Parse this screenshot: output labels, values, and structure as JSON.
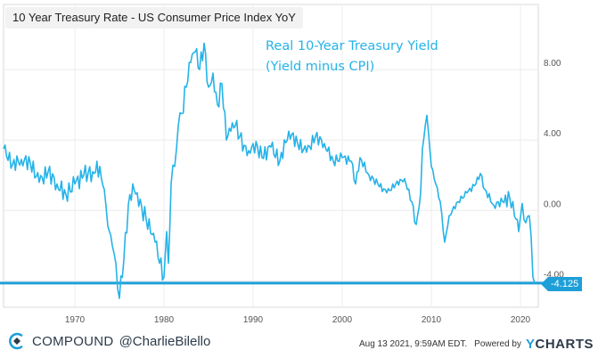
{
  "chart_data": {
    "type": "line",
    "title": "10 Year Treasury Rate - US Consumer Price Index YoY",
    "annotation_lines": [
      "Real 10-Year Treasury Yield",
      "(Yield minus CPI)"
    ],
    "x_ticks": [
      "1970",
      "1980",
      "1990",
      "2000",
      "2010",
      "2020"
    ],
    "y_ticks": [
      "8.00",
      "4.00",
      "0.00",
      "-4.00"
    ],
    "xlim": [
      1962,
      2022
    ],
    "ylim": [
      -5.5,
      11.7
    ],
    "grid": true,
    "reference_line": -4.125,
    "end_label": "-4.125",
    "series": [
      {
        "color": "#25b3e8",
        "points": [
          [
            1962.0,
            3.5
          ],
          [
            1963.0,
            2.6
          ],
          [
            1964.0,
            2.9
          ],
          [
            1965.0,
            2.7
          ],
          [
            1966.0,
            1.6
          ],
          [
            1967.0,
            2.2
          ],
          [
            1968.0,
            1.5
          ],
          [
            1969.0,
            0.9
          ],
          [
            1970.0,
            1.5
          ],
          [
            1971.0,
            2.0
          ],
          [
            1972.0,
            2.2
          ],
          [
            1972.8,
            2.5
          ],
          [
            1973.3,
            1.2
          ],
          [
            1973.7,
            -0.9
          ],
          [
            1974.2,
            -2.0
          ],
          [
            1974.6,
            -3.0
          ],
          [
            1975.0,
            -5.0
          ],
          [
            1975.5,
            -2.8
          ],
          [
            1976.0,
            0.3
          ],
          [
            1976.5,
            1.5
          ],
          [
            1977.0,
            1.0
          ],
          [
            1977.5,
            0.2
          ],
          [
            1978.0,
            -0.5
          ],
          [
            1978.5,
            -1.3
          ],
          [
            1979.0,
            -1.8
          ],
          [
            1979.5,
            -3.0
          ],
          [
            1980.0,
            -3.8
          ],
          [
            1980.3,
            -1.2
          ],
          [
            1980.5,
            -3.0
          ],
          [
            1980.8,
            1.5
          ],
          [
            1981.2,
            2.5
          ],
          [
            1981.6,
            4.8
          ],
          [
            1982.0,
            5.5
          ],
          [
            1982.5,
            7.0
          ],
          [
            1983.0,
            8.4
          ],
          [
            1983.5,
            9.0
          ],
          [
            1984.0,
            8.0
          ],
          [
            1984.5,
            9.5
          ],
          [
            1985.0,
            7.0
          ],
          [
            1985.5,
            7.8
          ],
          [
            1986.0,
            6.0
          ],
          [
            1986.5,
            7.2
          ],
          [
            1987.0,
            4.0
          ],
          [
            1987.5,
            4.5
          ],
          [
            1988.0,
            4.8
          ],
          [
            1988.5,
            4.2
          ],
          [
            1989.0,
            3.7
          ],
          [
            1989.5,
            3.4
          ],
          [
            1990.0,
            3.8
          ],
          [
            1990.5,
            3.6
          ],
          [
            1991.0,
            3.0
          ],
          [
            1992.0,
            3.6
          ],
          [
            1993.0,
            2.8
          ],
          [
            1994.0,
            4.5
          ],
          [
            1995.0,
            3.8
          ],
          [
            1996.0,
            3.3
          ],
          [
            1997.0,
            4.2
          ],
          [
            1998.0,
            3.8
          ],
          [
            1999.0,
            2.8
          ],
          [
            2000.0,
            3.0
          ],
          [
            2001.0,
            2.8
          ],
          [
            2001.5,
            1.5
          ],
          [
            2002.0,
            3.0
          ],
          [
            2003.0,
            2.0
          ],
          [
            2004.0,
            1.5
          ],
          [
            2005.0,
            1.0
          ],
          [
            2006.0,
            1.5
          ],
          [
            2007.0,
            1.8
          ],
          [
            2007.8,
            0.5
          ],
          [
            2008.3,
            -0.8
          ],
          [
            2008.8,
            1.0
          ],
          [
            2009.0,
            3.5
          ],
          [
            2009.5,
            5.4
          ],
          [
            2010.0,
            2.5
          ],
          [
            2010.5,
            1.5
          ],
          [
            2011.0,
            0.5
          ],
          [
            2011.5,
            -1.8
          ],
          [
            2012.0,
            -0.3
          ],
          [
            2013.0,
            0.5
          ],
          [
            2014.0,
            1.0
          ],
          [
            2015.0,
            1.5
          ],
          [
            2015.5,
            2.1
          ],
          [
            2016.0,
            1.2
          ],
          [
            2017.0,
            0.3
          ],
          [
            2018.0,
            0.5
          ],
          [
            2018.8,
            0.7
          ],
          [
            2019.5,
            -0.5
          ],
          [
            2019.8,
            -1.2
          ],
          [
            2020.2,
            0.4
          ],
          [
            2020.6,
            -0.7
          ],
          [
            2021.0,
            -0.3
          ],
          [
            2021.2,
            -1.5
          ],
          [
            2021.4,
            -3.8
          ],
          [
            2021.6,
            -4.125
          ]
        ]
      }
    ]
  },
  "footer": {
    "brand": "COMPOUND",
    "handle": "@CharlieBilello",
    "timestamp": "Aug 13 2021, 9:59AM EDT.",
    "powered_by": "Powered by",
    "ycharts_y": "Y",
    "ycharts_rest": "CHARTS"
  },
  "colors": {
    "line": "#25b3e8",
    "reference": "#1e9fd8",
    "brand": "#2d3b49"
  }
}
